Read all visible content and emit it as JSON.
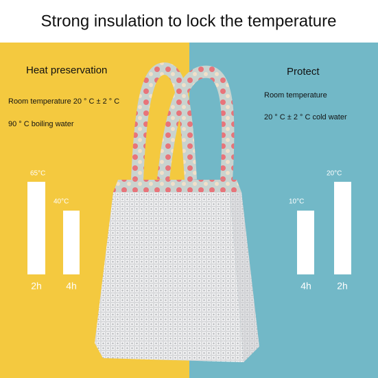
{
  "title": "Strong insulation to lock the temperature",
  "left": {
    "heading": "Heat preservation",
    "lines": [
      "Room temperature 20 ° C ± 2 ° C",
      "90 ° C boiling water"
    ],
    "bars": [
      {
        "label": "65°C",
        "time": "2h"
      },
      {
        "label": "40°C",
        "time": "4h"
      }
    ]
  },
  "right": {
    "heading": "Protect",
    "lines": [
      "Room temperature",
      "20 ° C ± 2 ° C cold water"
    ],
    "bars": [
      {
        "label": "10°C",
        "time": "4h"
      },
      {
        "label": "20°C",
        "time": "2h"
      }
    ]
  }
}
